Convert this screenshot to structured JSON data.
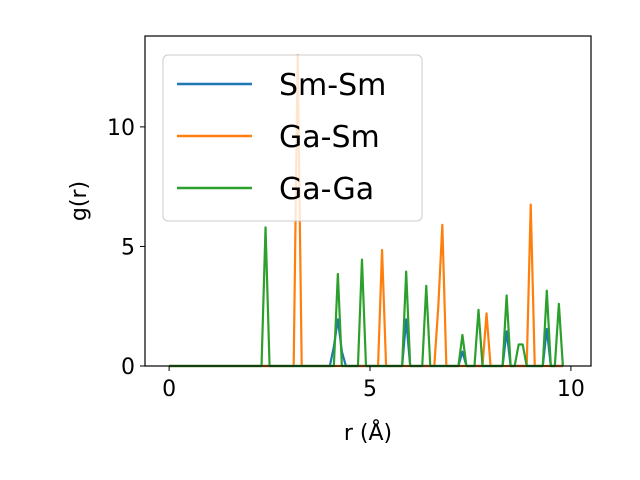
{
  "chart_data": {
    "type": "line",
    "title": "",
    "xlabel": "r (Å)",
    "ylabel": "g(r)",
    "xlim": [
      -0.6,
      10.5
    ],
    "ylim": [
      0,
      13.8
    ],
    "xticks": [
      0,
      5,
      10
    ],
    "yticks": [
      0,
      5,
      10
    ],
    "legend_position": "top-left",
    "series": [
      {
        "name": "Sm-Sm",
        "color": "#1f77b4",
        "x": [
          0,
          4.0,
          4.1,
          4.2,
          4.3,
          4.4,
          5.8,
          5.9,
          6.0,
          7.2,
          7.3,
          7.4,
          8.3,
          8.4,
          8.5,
          9.3,
          9.4,
          9.5,
          9.8
        ],
        "y": [
          0,
          0,
          0.8,
          1.95,
          0.6,
          0,
          0,
          1.95,
          0,
          0,
          0.6,
          0,
          0,
          1.45,
          0,
          0,
          1.55,
          0,
          0
        ]
      },
      {
        "name": "Ga-Sm",
        "color": "#ff7f0e",
        "x": [
          0,
          3.1,
          3.2,
          3.3,
          5.2,
          5.3,
          5.4,
          6.6,
          6.7,
          6.8,
          6.9,
          7.8,
          7.9,
          8.0,
          8.9,
          9.0,
          9.1,
          9.8
        ],
        "y": [
          0,
          0,
          13.0,
          0,
          0,
          4.85,
          0,
          0,
          2.5,
          5.9,
          0,
          0,
          2.2,
          0,
          0,
          6.75,
          0,
          0
        ]
      },
      {
        "name": "Ga-Ga",
        "color": "#2ca02c",
        "x": [
          0,
          2.3,
          2.4,
          2.5,
          4.1,
          4.2,
          4.3,
          4.7,
          4.8,
          4.9,
          5.8,
          5.9,
          6.0,
          6.3,
          6.4,
          6.5,
          7.2,
          7.3,
          7.4,
          7.6,
          7.7,
          7.8,
          8.3,
          8.4,
          8.5,
          8.6,
          8.7,
          8.8,
          8.9,
          9.3,
          9.4,
          9.5,
          9.6,
          9.7,
          9.8
        ],
        "y": [
          0,
          0,
          5.8,
          0,
          0,
          3.85,
          0,
          0,
          4.45,
          0,
          0,
          3.95,
          0,
          0,
          3.35,
          0,
          0,
          1.3,
          0,
          0,
          2.35,
          0,
          0,
          2.95,
          0,
          0,
          0.9,
          0.9,
          0,
          0,
          3.15,
          0,
          0,
          2.6,
          0
        ]
      }
    ]
  }
}
